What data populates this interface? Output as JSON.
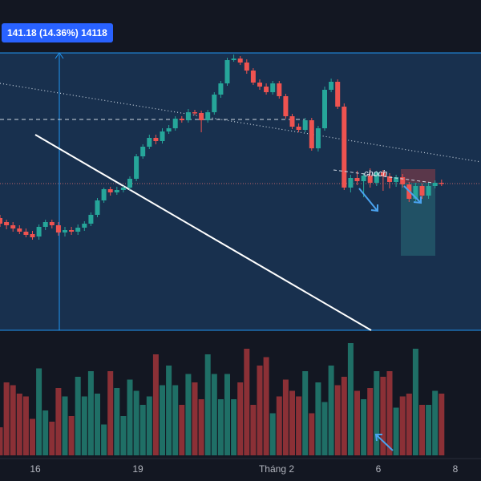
{
  "measure_badge": {
    "price_change": "141.18",
    "percent_change": "(14.36%)",
    "bars": "14118"
  },
  "annotation": {
    "label": "choch"
  },
  "x_axis": {
    "ticks": [
      "16",
      "19",
      "Tháng 2",
      "6",
      "8"
    ]
  },
  "colors": {
    "background": "#131722",
    "up": "#26a69a",
    "down": "#ef5350",
    "up_volume": "#1f6f66",
    "down_volume": "#8b3036",
    "measure_fill": "#1b3a5e",
    "measure_line": "#2196f3",
    "trendline": "#ffffff",
    "badge": "#2962ff"
  },
  "chart_data": {
    "type": "candlestick",
    "candles": [
      [
        272,
        279,
        268,
        283
      ],
      [
        277,
        281,
        274,
        286
      ],
      [
        281,
        285,
        277,
        289
      ],
      [
        285,
        289,
        281,
        292
      ],
      [
        289,
        293,
        285,
        296
      ],
      [
        292,
        296,
        288,
        299
      ],
      [
        295,
        283,
        280,
        299
      ],
      [
        283,
        277,
        274,
        287
      ],
      [
        277,
        281,
        274,
        285
      ],
      [
        281,
        290,
        277,
        294
      ],
      [
        290,
        287,
        283,
        295
      ],
      [
        287,
        289,
        283,
        293
      ],
      [
        289,
        284,
        280,
        293
      ],
      [
        284,
        279,
        276,
        288
      ],
      [
        279,
        268,
        265,
        282
      ],
      [
        268,
        250,
        247,
        271
      ],
      [
        250,
        236,
        234,
        253
      ],
      [
        236,
        240,
        233,
        244
      ],
      [
        240,
        237,
        233,
        243
      ],
      [
        237,
        234,
        232,
        240
      ],
      [
        234,
        223,
        220,
        237
      ],
      [
        223,
        195,
        192,
        226
      ],
      [
        195,
        183,
        180,
        198
      ],
      [
        183,
        172,
        168,
        186
      ],
      [
        172,
        176,
        168,
        180
      ],
      [
        176,
        164,
        160,
        179
      ],
      [
        164,
        160,
        156,
        167
      ],
      [
        160,
        148,
        145,
        163
      ],
      [
        148,
        150,
        145,
        153
      ],
      [
        150,
        140,
        136,
        153
      ],
      [
        140,
        141,
        137,
        144
      ],
      [
        141,
        150,
        138,
        165
      ],
      [
        150,
        140,
        137,
        153
      ],
      [
        140,
        118,
        115,
        143
      ],
      [
        118,
        104,
        101,
        122
      ],
      [
        104,
        75,
        72,
        107
      ],
      [
        75,
        73,
        68,
        77
      ],
      [
        73,
        78,
        70,
        81
      ],
      [
        78,
        88,
        74,
        92
      ],
      [
        88,
        103,
        85,
        106
      ],
      [
        103,
        108,
        99,
        112
      ],
      [
        108,
        115,
        104,
        118
      ],
      [
        115,
        104,
        101,
        118
      ],
      [
        104,
        120,
        101,
        123
      ],
      [
        120,
        145,
        117,
        148
      ],
      [
        145,
        158,
        142,
        161
      ],
      [
        158,
        162,
        154,
        165
      ],
      [
        162,
        150,
        147,
        165
      ],
      [
        150,
        185,
        147,
        188
      ],
      [
        185,
        160,
        157,
        189
      ],
      [
        160,
        112,
        108,
        163
      ],
      [
        112,
        102,
        98,
        115
      ],
      [
        102,
        133,
        99,
        136
      ],
      [
        133,
        234,
        129,
        237
      ],
      [
        234,
        222,
        218,
        240
      ],
      [
        222,
        226,
        213,
        231
      ],
      [
        226,
        219,
        216,
        246
      ],
      [
        219,
        228,
        210,
        234
      ],
      [
        228,
        215,
        213,
        232
      ],
      [
        215,
        220,
        212,
        238
      ],
      [
        220,
        227,
        216,
        235
      ],
      [
        227,
        221,
        218,
        233
      ],
      [
        221,
        230,
        217,
        234
      ],
      [
        230,
        248,
        227,
        252
      ],
      [
        248,
        232,
        228,
        251
      ],
      [
        232,
        244,
        229,
        248
      ],
      [
        244,
        232,
        228,
        248
      ],
      [
        232,
        228,
        225,
        235
      ],
      [
        228,
        229,
        224,
        232
      ]
    ],
    "volume": [
      10,
      26,
      25,
      22,
      21,
      13,
      31,
      16,
      12,
      24,
      21,
      14,
      28,
      21,
      30,
      22,
      11,
      30,
      24,
      14,
      27,
      23,
      18,
      21,
      36,
      25,
      32,
      25,
      18,
      29,
      26,
      20,
      36,
      29,
      20,
      29,
      20,
      26,
      38,
      18,
      32,
      35,
      15,
      21,
      27,
      23,
      21,
      30,
      15,
      26,
      19,
      32,
      25,
      28,
      40,
      23,
      20,
      24,
      30,
      28,
      30,
      17,
      21,
      22,
      38,
      18,
      18,
      23,
      22
    ]
  }
}
